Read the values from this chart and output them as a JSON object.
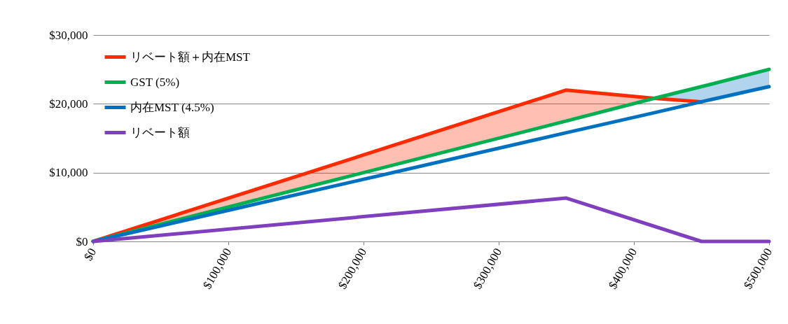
{
  "chart_data": {
    "type": "line",
    "xlim": [
      0,
      500000
    ],
    "xticks": [
      {
        "value": 0,
        "label": "$0"
      },
      {
        "value": 100000,
        "label": "$100,000"
      },
      {
        "value": 200000,
        "label": "$200,000"
      },
      {
        "value": 300000,
        "label": "$300,000"
      },
      {
        "value": 400000,
        "label": "$400,000"
      },
      {
        "value": 500000,
        "label": "$500,000"
      }
    ],
    "ylim": [
      0,
      30000
    ],
    "yticks": [
      {
        "value": 0,
        "label": "$0"
      },
      {
        "value": 10000,
        "label": "$10,000"
      },
      {
        "value": 20000,
        "label": "$20,000"
      },
      {
        "value": 30000,
        "label": "$30,000"
      }
    ],
    "grid": "y",
    "legend": "top left",
    "line_style": "solid",
    "marker": "none",
    "series": [
      {
        "name": "リベート額＋内在MST",
        "color": "#ff2a00",
        "x": [
          0,
          350000,
          415000,
          450000
        ],
        "values": [
          0,
          22000,
          20800,
          20300
        ],
        "lower": [
          0,
          17500,
          20800,
          null
        ],
        "upper": [
          0,
          22000,
          20800,
          null
        ]
      },
      {
        "name": "GST (5%)",
        "color": "#00b050",
        "x": [
          0,
          350000,
          415000,
          450000,
          500000
        ],
        "values": [
          0,
          17500,
          20800,
          22500,
          25000
        ]
      },
      {
        "name": "内在MST (4.5%)",
        "color": "#0070c0",
        "x": [
          0,
          350000,
          415000,
          450000,
          500000
        ],
        "values": [
          0,
          15800,
          18700,
          20300,
          22500
        ],
        "lower": [
          null,
          null,
          20800,
          20300,
          22500
        ],
        "upper": [
          null,
          null,
          20800,
          22500,
          25000
        ]
      },
      {
        "name": "リベート額",
        "color": "#7f3fbf",
        "x": [
          0,
          350000,
          450000,
          500000
        ],
        "values": [
          0,
          6300,
          0,
          0
        ]
      }
    ]
  }
}
